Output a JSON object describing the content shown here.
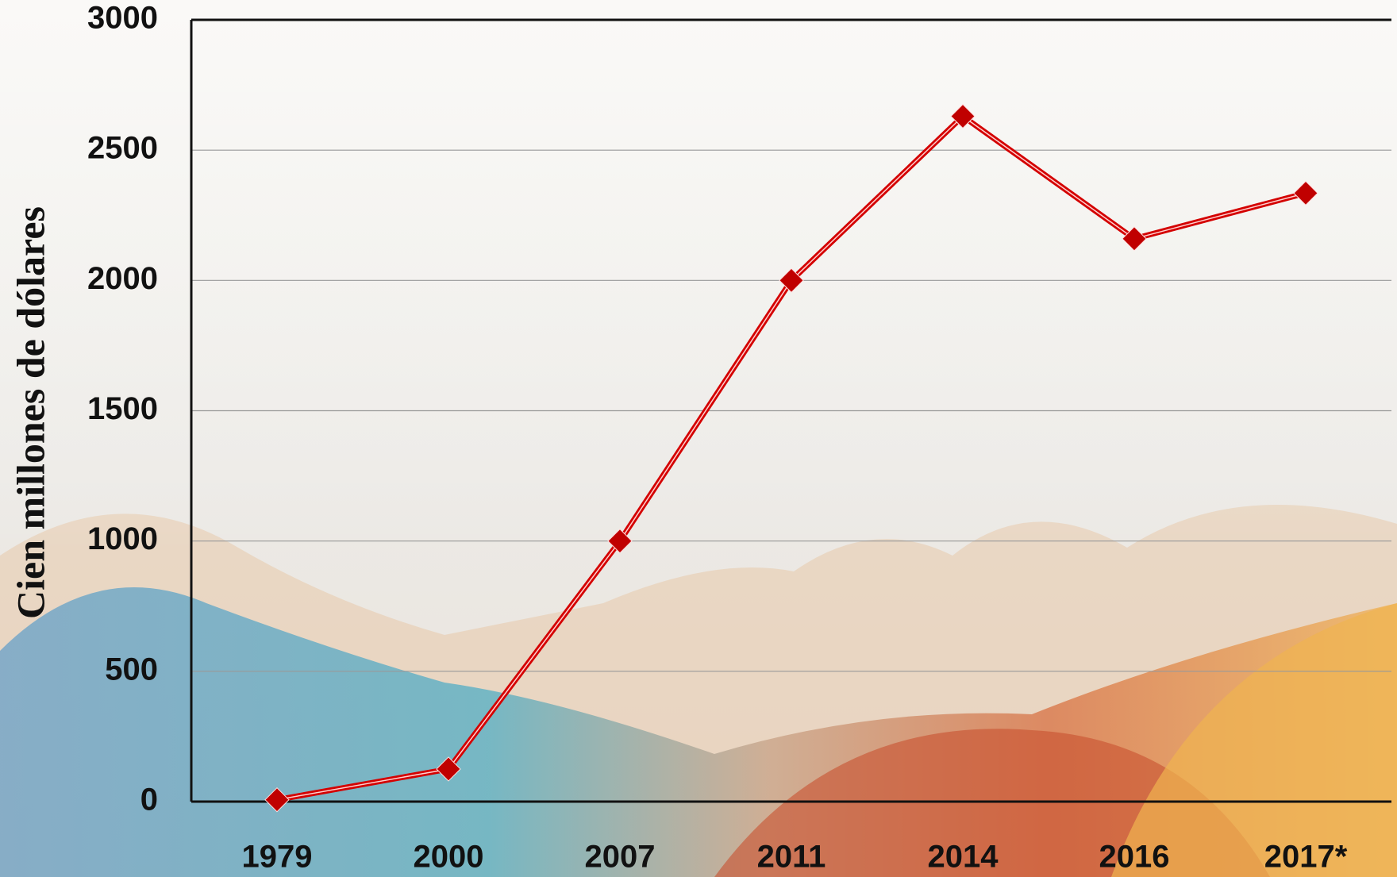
{
  "chart_data": {
    "type": "line",
    "y_label": "Cien millones de  dólares",
    "categories": [
      "1979",
      "2000",
      "2007",
      "2011",
      "2014",
      "2016",
      "2017*"
    ],
    "series": [
      {
        "name": "Cien millones de dólares",
        "color": "#d40000",
        "values": [
          7,
          125,
          1000,
          2000,
          2630,
          2160,
          2335
        ]
      }
    ],
    "ylim": [
      0,
      3000
    ],
    "yticks": [
      0,
      500,
      1000,
      1500,
      2000,
      2500,
      3000
    ],
    "grid": true
  }
}
